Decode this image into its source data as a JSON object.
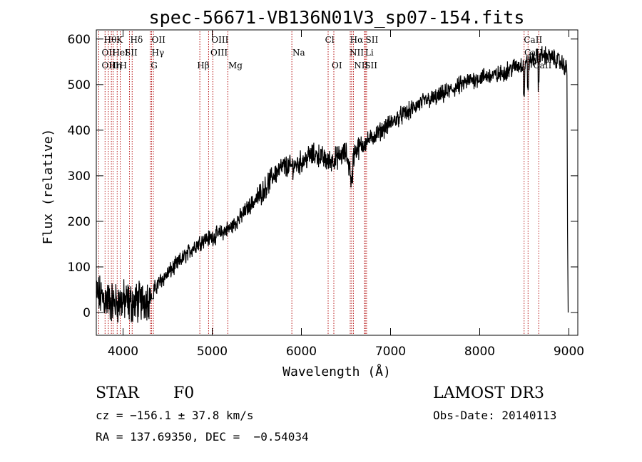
{
  "chart_data": {
    "type": "line",
    "title": "spec-56671-VB136N01V3_sp07-154.fits",
    "xlabel": "Wavelength (Å)",
    "ylabel": "Flux (relative)",
    "xlim": [
      3700,
      9100
    ],
    "ylim": [
      -50,
      620
    ],
    "xticks": [
      4000,
      5000,
      6000,
      7000,
      8000,
      9000
    ],
    "yticks": [
      0,
      100,
      200,
      300,
      400,
      500,
      600
    ],
    "series": [
      {
        "name": "flux",
        "x": [
          3700,
          3800,
          3900,
          4000,
          4100,
          4200,
          4300,
          4400,
          4500,
          4600,
          4700,
          4800,
          4900,
          5000,
          5100,
          5200,
          5300,
          5400,
          5500,
          5600,
          5700,
          5800,
          5900,
          6000,
          6100,
          6200,
          6300,
          6400,
          6500,
          6550,
          6600,
          6700,
          6800,
          6900,
          7000,
          7100,
          7200,
          7300,
          7400,
          7500,
          7600,
          7700,
          7800,
          7900,
          8000,
          8100,
          8200,
          8300,
          8400,
          8500,
          8600,
          8700,
          8800,
          8900,
          8980,
          9000
        ],
        "y": [
          40,
          30,
          20,
          25,
          20,
          25,
          35,
          65,
          85,
          105,
          125,
          145,
          160,
          165,
          175,
          185,
          205,
          230,
          250,
          275,
          305,
          320,
          320,
          330,
          345,
          345,
          330,
          340,
          350,
          310,
          355,
          370,
          385,
          400,
          415,
          430,
          440,
          455,
          465,
          470,
          480,
          490,
          500,
          510,
          515,
          520,
          520,
          530,
          540,
          545,
          555,
          565,
          560,
          550,
          535,
          0
        ]
      }
    ],
    "line_markers": [
      {
        "label": "Hθ",
        "wl": 3798,
        "row": 0,
        "lx": 3785
      },
      {
        "label": "K",
        "wl": 3934,
        "row": 0,
        "lx": 3925
      },
      {
        "label": "Hδ",
        "wl": 4102,
        "row": 0,
        "lx": 4080
      },
      {
        "label": "OII",
        "wl": 4320,
        "row": 0,
        "lx": 4320
      },
      {
        "label": "OIII",
        "wl": 5007,
        "row": 0,
        "lx": 4990
      },
      {
        "label": "Cl",
        "wl": 6300,
        "row": 0,
        "lx": 6265
      },
      {
        "label": "Hα",
        "wl": 6563,
        "row": 0,
        "lx": 6545
      },
      {
        "label": "SII",
        "wl": 6717,
        "row": 0,
        "lx": 6720
      },
      {
        "label": "CaII",
        "wl": 8498,
        "row": 0,
        "lx": 8495
      },
      {
        "label": "OII",
        "wl": 3727,
        "row": 1,
        "lx": 3760
      },
      {
        "label": "HeI",
        "wl": 3889,
        "row": 1,
        "lx": 3880
      },
      {
        "label": "SII",
        "wl": 4072,
        "row": 1,
        "lx": 4020
      },
      {
        "label": "Hγ",
        "wl": 4340,
        "row": 1,
        "lx": 4320
      },
      {
        "label": "OIII",
        "wl": 4959,
        "row": 1,
        "lx": 4980
      },
      {
        "label": "Na",
        "wl": 5893,
        "row": 1,
        "lx": 5900
      },
      {
        "label": "NII",
        "wl": 6548,
        "row": 1,
        "lx": 6540
      },
      {
        "label": "Li",
        "wl": 6708,
        "row": 1,
        "lx": 6715
      },
      {
        "label": "CaII",
        "wl": 8542,
        "row": 1,
        "lx": 8500
      },
      {
        "label": "OIII",
        "wl": 3869,
        "row": 2,
        "lx": 3760
      },
      {
        "label": "Hη",
        "wl": 3835,
        "row": 2,
        "lx": 3840
      },
      {
        "label": "H",
        "wl": 3968,
        "row": 2,
        "lx": 3960
      },
      {
        "label": "G",
        "wl": 4304,
        "row": 2,
        "lx": 4310
      },
      {
        "label": "Hβ",
        "wl": 4861,
        "row": 2,
        "lx": 4830
      },
      {
        "label": "Mg",
        "wl": 5175,
        "row": 2,
        "lx": 5180
      },
      {
        "label": "OI",
        "wl": 6364,
        "row": 2,
        "lx": 6340
      },
      {
        "label": "NII",
        "wl": 6583,
        "row": 2,
        "lx": 6590
      },
      {
        "label": "SII",
        "wl": 6731,
        "row": 2,
        "lx": 6710
      },
      {
        "label": "CaII",
        "wl": 8662,
        "row": 2,
        "lx": 8600
      }
    ]
  },
  "info": {
    "class": "STAR",
    "subclass": "F0",
    "survey": "LAMOST DR3",
    "cz": "cz = −156.1 ± 37.8 km/s",
    "obs_date": "Obs-Date: 20140113",
    "radec": "RA = 137.69350, DEC =  −0.54034"
  },
  "colors": {
    "marker": "#b00000",
    "line": "#000000"
  }
}
